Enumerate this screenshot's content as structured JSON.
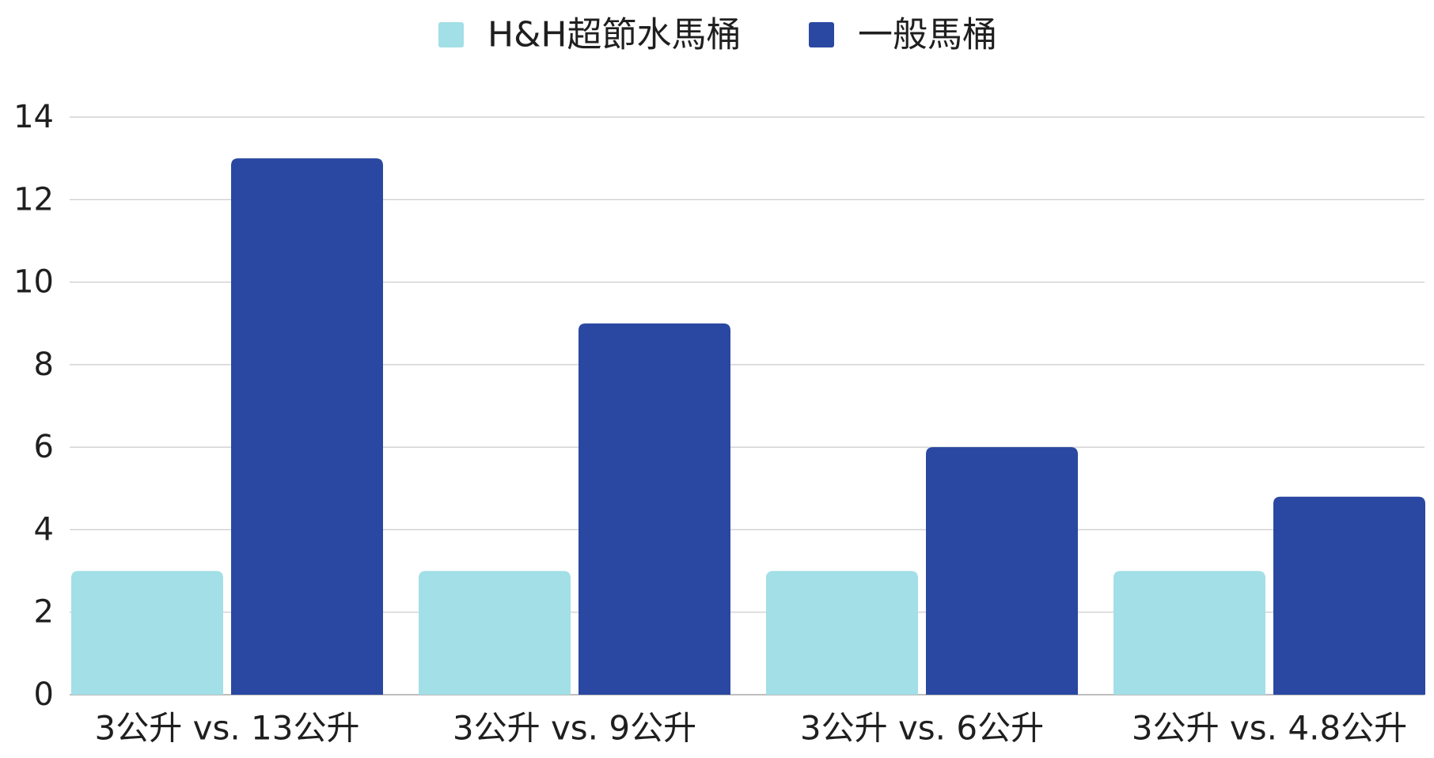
{
  "chart_data": {
    "type": "bar",
    "categories": [
      "3公升 vs. 13公升",
      "3公升 vs. 9公升",
      "3公升 vs. 6公升",
      "3公升 vs. 4.8公升"
    ],
    "series": [
      {
        "name": "H&H超節水馬桶",
        "values": [
          3,
          3,
          3,
          3
        ],
        "color": "#a2dfe6"
      },
      {
        "name": "一般馬桶",
        "values": [
          13,
          9,
          6,
          4.8
        ],
        "color": "#2a48a1"
      }
    ],
    "title": "",
    "xlabel": "",
    "ylabel": "",
    "ylim": [
      0,
      14
    ],
    "yticks": [
      0,
      2,
      4,
      6,
      8,
      10,
      12,
      14
    ],
    "grid": true,
    "legend_position": "top-center"
  }
}
